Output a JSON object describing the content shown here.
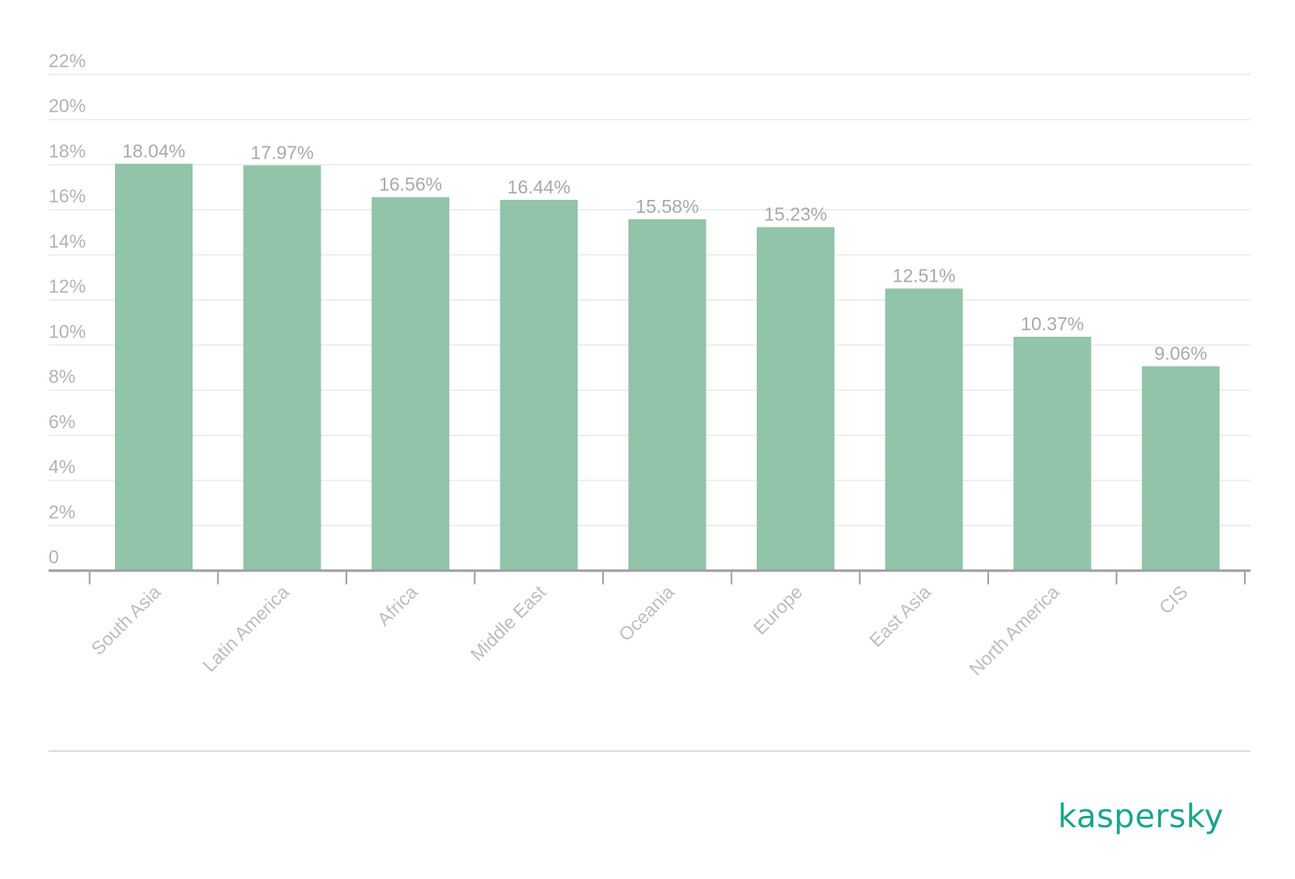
{
  "chart_data": {
    "type": "bar",
    "categories": [
      "South Asia",
      "Latin America",
      "Africa",
      "Middle East",
      "Oceania",
      "Europe",
      "East Asia",
      "North America",
      "CIS"
    ],
    "values": [
      18.04,
      17.97,
      16.56,
      16.44,
      15.58,
      15.23,
      12.51,
      10.37,
      9.06
    ],
    "value_labels": [
      "18.04%",
      "17.97%",
      "16.56%",
      "16.44%",
      "15.58%",
      "15.23%",
      "12.51%",
      "10.37%",
      "9.06%"
    ],
    "y_ticks": [
      0,
      2,
      4,
      6,
      8,
      10,
      12,
      14,
      16,
      18,
      20,
      22
    ],
    "y_tick_labels": [
      "0",
      "2%",
      "4%",
      "6%",
      "8%",
      "10%",
      "12%",
      "14%",
      "16%",
      "18%",
      "20%",
      "22%"
    ],
    "ylim": [
      0,
      22
    ],
    "grid": true,
    "bar_color": "#91c4a8",
    "grid_color": "#e9e9e9",
    "axis_color": "#9e9e9e",
    "title": "",
    "xlabel": "",
    "ylabel": ""
  },
  "brand": {
    "name": "kaspersky",
    "color": "#1aa58c"
  }
}
